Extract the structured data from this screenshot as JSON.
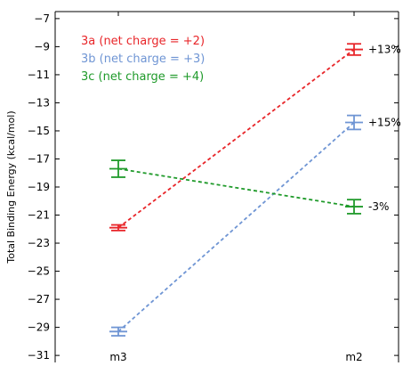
{
  "chart_data": {
    "type": "line",
    "ylabel": "Total Binding Energy (kcal/mol)",
    "xlabel": "",
    "categories": [
      "m3",
      "m2"
    ],
    "ylim": [
      -31.5,
      -6.5
    ],
    "yticks": [
      -7,
      -9,
      -11,
      -13,
      -15,
      -17,
      -19,
      -21,
      -23,
      -25,
      -27,
      -29,
      -31
    ],
    "grid": false,
    "legend_position": "top-left",
    "series": [
      {
        "name": "3a (net charge = +2)",
        "color": "#e8262a",
        "values": [
          -21.9,
          -9.2
        ],
        "errors": [
          0.2,
          0.4
        ],
        "end_label": "+13%"
      },
      {
        "name": "3b (net charge = +3)",
        "color": "#6f95d4",
        "values": [
          -29.3,
          -14.4
        ],
        "errors": [
          0.3,
          0.5
        ],
        "end_label": "+15%"
      },
      {
        "name": "3c (net charge = +4)",
        "color": "#1f9a2a",
        "values": [
          -17.7,
          -20.4
        ],
        "errors": [
          0.6,
          0.5
        ],
        "end_label": "-3%"
      }
    ]
  }
}
